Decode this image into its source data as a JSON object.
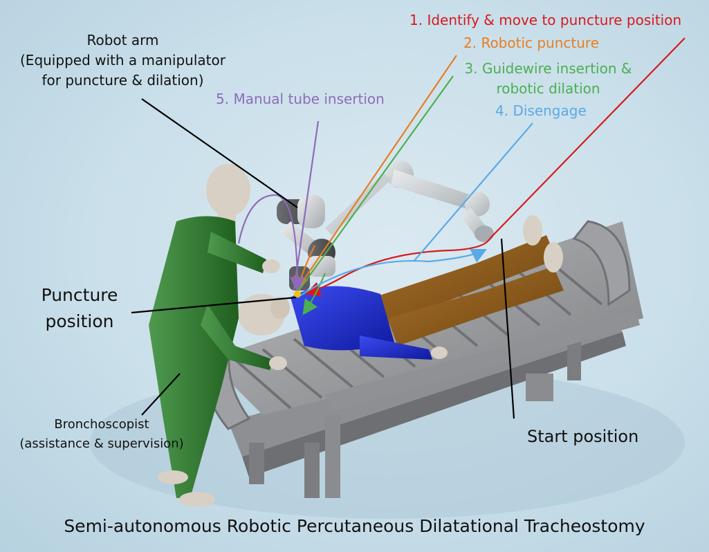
{
  "title": "Semi-autonomous Robotic Percutaneous Dilatational Tracheostomy",
  "labels": {
    "robot_arm": {
      "line1": "Robot arm",
      "line2": "(Equipped with a manipulator",
      "line3": "for puncture & dilation)"
    },
    "puncture_position": {
      "line1": "Puncture",
      "line2": "position"
    },
    "bronchoscopist": {
      "line1": "Bronchoscopist",
      "line2": "(assistance & supervision)"
    },
    "start_position": "Start position"
  },
  "steps": [
    {
      "label": "1. Identify & move to puncture position",
      "color": "#d7191c"
    },
    {
      "label": "2. Robotic puncture",
      "color": "#e67e22"
    },
    {
      "label": "3. Guidewire insertion &",
      "label2": "robotic dilation",
      "color": "#4caf50"
    },
    {
      "label": "4. Disengage",
      "color": "#5aa9e6"
    },
    {
      "label": "5. Manual tube insertion",
      "color": "#8e6bb8"
    }
  ],
  "colors": {
    "background": "#c9dfea",
    "bed": "#9a9c9e",
    "patient_shirt": "#1f2fd0",
    "patient_pants": "#8b5a1a",
    "clinician": "#2f7d2f",
    "skin": "#d8d0c4",
    "robot": "#cfd2d4"
  }
}
